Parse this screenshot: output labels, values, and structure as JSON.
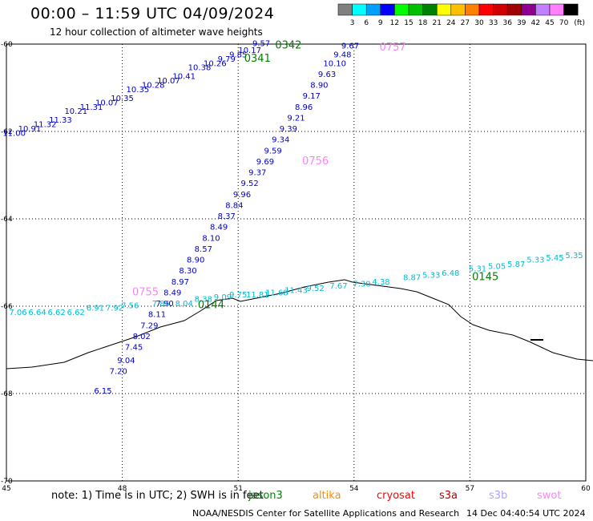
{
  "header": {
    "title": "00:00 – 11:59 UTC 04/09/2024",
    "subtitle": "12 hour collection of altimeter wave heights"
  },
  "legend": {
    "unit": "(ft)",
    "colors": [
      "#808080",
      "#00ffff",
      "#00a0ff",
      "#0000ff",
      "#00ff00",
      "#00c000",
      "#008000",
      "#ffff00",
      "#ffc000",
      "#ff8000",
      "#ff0000",
      "#d00000",
      "#a00000",
      "#900090",
      "#c080ff",
      "#ff80ff",
      "#000000"
    ],
    "labels": [
      "3",
      "6",
      "9",
      "12",
      "15",
      "18",
      "21",
      "24",
      "27",
      "30",
      "33",
      "36",
      "39",
      "42",
      "45",
      "70"
    ]
  },
  "footer": {
    "note": "note: 1) Time is in UTC; 2) SWH is in feet",
    "satellites": [
      {
        "name": "jason3",
        "color": "#008000"
      },
      {
        "name": "altika",
        "color": "#ff8c00"
      },
      {
        "name": "cryosat",
        "color": "#ff0000"
      },
      {
        "name": "s3a",
        "color": "#b00000"
      },
      {
        "name": "s3b",
        "color": "#b0a0ff"
      },
      {
        "name": "swot",
        "color": "#ff80ff"
      }
    ],
    "credit": "NOAA/NESDIS Center for Satellite Applications and Research",
    "timestamp": "14 Dec 04:40:54 UTC 2024"
  },
  "chart_data": {
    "type": "scatter",
    "title": "00:00 – 11:59 UTC 04/09/2024",
    "subtitle": "12 hour collection of altimeter wave heights",
    "xlim": [
      45,
      60
    ],
    "ylim": [
      -70,
      -60
    ],
    "x_ticks": [
      "45",
      "48",
      "51",
      "54",
      "57",
      "60"
    ],
    "y_ticks": [
      "-60",
      "-62",
      "-64",
      "-66",
      "-68",
      "-70"
    ],
    "grid": true,
    "series": [
      {
        "name": "pass 0342",
        "color": "#0000cc",
        "points": [
          {
            "x": 45.2,
            "y": -62.1,
            "label": "11.00"
          },
          {
            "x": 45.6,
            "y": -62.0,
            "label": "10.91"
          },
          {
            "x": 46.0,
            "y": -61.9,
            "label": "11.32"
          },
          {
            "x": 46.4,
            "y": -61.8,
            "label": "11.33"
          },
          {
            "x": 46.8,
            "y": -61.6,
            "label": "10.21"
          },
          {
            "x": 47.2,
            "y": -61.5,
            "label": "11.31"
          },
          {
            "x": 47.6,
            "y": -61.4,
            "label": "10.07"
          },
          {
            "x": 48.0,
            "y": -61.3,
            "label": "10.35"
          },
          {
            "x": 48.4,
            "y": -61.1,
            "label": "10.35"
          },
          {
            "x": 48.8,
            "y": -61.0,
            "label": "10.28"
          },
          {
            "x": 49.2,
            "y": -60.9,
            "label": "10.07"
          },
          {
            "x": 49.6,
            "y": -60.8,
            "label": "10.41"
          },
          {
            "x": 50.0,
            "y": -60.6,
            "label": "10.38"
          },
          {
            "x": 50.4,
            "y": -60.5,
            "label": "10.26"
          },
          {
            "x": 50.7,
            "y": -60.4,
            "label": "9.79"
          },
          {
            "x": 51.0,
            "y": -60.3,
            "label": "9.85"
          },
          {
            "x": 51.3,
            "y": -60.2,
            "label": "10.17"
          },
          {
            "x": 51.6,
            "y": -60.05,
            "label": "9.57"
          }
        ]
      },
      {
        "name": "pass 0757",
        "color": "#0000cc",
        "points": [
          {
            "x": 53.9,
            "y": -60.1,
            "label": "9.67"
          },
          {
            "x": 53.7,
            "y": -60.3,
            "label": "9.48"
          },
          {
            "x": 53.5,
            "y": -60.5,
            "label": "10.10"
          },
          {
            "x": 53.3,
            "y": -60.75,
            "label": "9.63"
          },
          {
            "x": 53.1,
            "y": -61.0,
            "label": "8.90"
          },
          {
            "x": 52.9,
            "y": -61.25,
            "label": "9.17"
          },
          {
            "x": 52.7,
            "y": -61.5,
            "label": "8.96"
          },
          {
            "x": 52.5,
            "y": -61.75,
            "label": "9.21"
          },
          {
            "x": 52.3,
            "y": -62.0,
            "label": "9.39"
          },
          {
            "x": 52.1,
            "y": -62.25,
            "label": "9.34"
          },
          {
            "x": 51.9,
            "y": -62.5,
            "label": "9.59"
          },
          {
            "x": 51.7,
            "y": -62.75,
            "label": "9.69"
          },
          {
            "x": 51.5,
            "y": -63.0,
            "label": "9.37"
          },
          {
            "x": 51.3,
            "y": -63.25,
            "label": "9.52"
          },
          {
            "x": 51.1,
            "y": -63.5,
            "label": "9.96"
          },
          {
            "x": 50.9,
            "y": -63.75,
            "label": "8.84"
          },
          {
            "x": 50.7,
            "y": -64.0,
            "label": "8.37"
          },
          {
            "x": 50.5,
            "y": -64.25,
            "label": "8.49"
          },
          {
            "x": 50.3,
            "y": -64.5,
            "label": "8.10"
          },
          {
            "x": 50.1,
            "y": -64.75,
            "label": "8.57"
          },
          {
            "x": 49.9,
            "y": -65.0,
            "label": "8.90"
          },
          {
            "x": 49.7,
            "y": -65.25,
            "label": "8.30"
          },
          {
            "x": 49.5,
            "y": -65.5,
            "label": "8.97"
          },
          {
            "x": 49.3,
            "y": -65.75,
            "label": "8.49"
          },
          {
            "x": 49.1,
            "y": -66.0,
            "label": "7.90"
          },
          {
            "x": 48.9,
            "y": -66.25,
            "label": "8.11"
          },
          {
            "x": 48.7,
            "y": -66.5,
            "label": "7.29"
          },
          {
            "x": 48.5,
            "y": -66.75,
            "label": "8.02"
          },
          {
            "x": 48.3,
            "y": -67.0,
            "label": "7.45"
          },
          {
            "x": 48.1,
            "y": -67.3,
            "label": "9.04"
          },
          {
            "x": 47.9,
            "y": -67.55,
            "label": "7.20"
          },
          {
            "x": 47.5,
            "y": -68.0,
            "label": "6.15"
          }
        ]
      },
      {
        "name": "pass 0145",
        "color": "#00bcd4",
        "points": [
          {
            "x": 45.3,
            "y": -66.2,
            "label": "7.06"
          },
          {
            "x": 45.8,
            "y": -66.2,
            "label": "6.64"
          },
          {
            "x": 46.3,
            "y": -66.2,
            "label": "6.62"
          },
          {
            "x": 46.8,
            "y": -66.2,
            "label": "6.62"
          },
          {
            "x": 47.3,
            "y": -66.1,
            "label": "6.91"
          },
          {
            "x": 47.8,
            "y": -66.1,
            "label": "7.92"
          },
          {
            "x": 48.2,
            "y": -66.05,
            "label": "7.56"
          },
          {
            "x": 49.0,
            "y": -66.0,
            "label": "7.85"
          },
          {
            "x": 49.6,
            "y": -66.0,
            "label": "8.04"
          },
          {
            "x": 50.1,
            "y": -65.9,
            "label": "8.38"
          },
          {
            "x": 50.6,
            "y": -65.85,
            "label": "9.09"
          },
          {
            "x": 51.0,
            "y": -65.8,
            "label": "9.75"
          },
          {
            "x": 51.5,
            "y": -65.8,
            "label": "11.81"
          },
          {
            "x": 52.0,
            "y": -65.75,
            "label": "11.68"
          },
          {
            "x": 52.5,
            "y": -65.7,
            "label": "11.43"
          },
          {
            "x": 53.0,
            "y": -65.65,
            "label": "9.52"
          },
          {
            "x": 53.6,
            "y": -65.6,
            "label": "7.67"
          },
          {
            "x": 54.2,
            "y": -65.55,
            "label": "7.30"
          },
          {
            "x": 54.7,
            "y": -65.5,
            "label": "4.38"
          },
          {
            "x": 55.5,
            "y": -65.4,
            "label": "8.87"
          },
          {
            "x": 56.0,
            "y": -65.35,
            "label": "5.33"
          },
          {
            "x": 56.5,
            "y": -65.3,
            "label": "6.48"
          },
          {
            "x": 57.2,
            "y": -65.2,
            "label": "5.31"
          },
          {
            "x": 57.7,
            "y": -65.15,
            "label": "5.05"
          },
          {
            "x": 58.2,
            "y": -65.1,
            "label": "5.87"
          },
          {
            "x": 58.7,
            "y": -65.0,
            "label": "5.33"
          },
          {
            "x": 59.2,
            "y": -64.95,
            "label": "5.45"
          },
          {
            "x": 59.7,
            "y": -64.9,
            "label": "5.35"
          }
        ]
      }
    ],
    "pass_labels": [
      {
        "x": 52.3,
        "y": -60.1,
        "label": "0342",
        "color": "#008000"
      },
      {
        "x": 51.5,
        "y": -60.4,
        "label": "0341",
        "color": "#008000"
      },
      {
        "x": 55.0,
        "y": -60.15,
        "label": "0757",
        "color": "#ff80ff"
      },
      {
        "x": 53.0,
        "y": -62.75,
        "label": "0756",
        "color": "#ff80ff"
      },
      {
        "x": 48.6,
        "y": -65.75,
        "label": "0755",
        "color": "#ff80ff"
      },
      {
        "x": 57.4,
        "y": -65.4,
        "label": "0145",
        "color": "#008000"
      },
      {
        "x": 50.3,
        "y": -66.05,
        "label": "0144",
        "color": "#008000"
      }
    ]
  }
}
